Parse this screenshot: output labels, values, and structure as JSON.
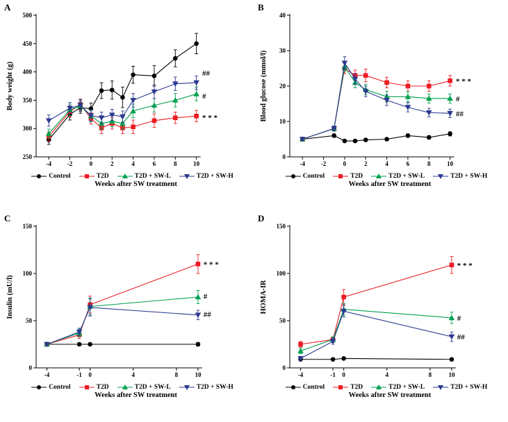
{
  "legend": {
    "items": [
      {
        "id": "control",
        "label": "Control",
        "marker": "circle",
        "color": "#000000"
      },
      {
        "id": "t2d",
        "label": "T2D",
        "marker": "square",
        "color": "#EC1C24"
      },
      {
        "id": "t2d-sw-l",
        "label": "T2D + SW-L",
        "marker": "triangle-up",
        "color": "#00A04E"
      },
      {
        "id": "t2d-sw-h",
        "label": "T2D + SW-H",
        "marker": "triangle-down",
        "color": "#2B3990"
      }
    ]
  },
  "chart_data": [
    {
      "type": "line",
      "letter": "A",
      "ylabel": "Body weight (g)",
      "xlabel": "Weeks after SW treatment",
      "ylim": [
        250,
        500
      ],
      "yticks": [
        250,
        300,
        350,
        400,
        450,
        500
      ],
      "xlim": [
        -5.2,
        12.2
      ],
      "xticks": [
        -4,
        -2,
        0,
        2,
        4,
        6,
        8,
        10
      ],
      "series": [
        {
          "name": "Control",
          "color": "#000000",
          "marker": "circle",
          "x": [
            -4,
            -2,
            -1,
            0,
            1,
            2,
            3,
            4,
            6,
            8,
            10
          ],
          "y": [
            280,
            325,
            337,
            335,
            367,
            368,
            355,
            395,
            393,
            424,
            450
          ],
          "err": [
            8,
            10,
            10,
            10,
            14,
            16,
            18,
            15,
            18,
            15,
            18
          ]
        },
        {
          "name": "T2D",
          "color": "#EC1C24",
          "marker": "square",
          "x": [
            -4,
            -2,
            -1,
            0,
            1,
            2,
            3,
            4,
            6,
            8,
            10
          ],
          "y": [
            286,
            330,
            342,
            318,
            301,
            309,
            301,
            303,
            314,
            319,
            322
          ],
          "err": [
            8,
            10,
            10,
            10,
            10,
            10,
            10,
            12,
            12,
            10,
            10
          ]
        },
        {
          "name": "T2D + SW-L",
          "color": "#00A04E",
          "marker": "triangle-up",
          "x": [
            -4,
            -2,
            -1,
            0,
            1,
            2,
            3,
            4,
            6,
            8,
            10
          ],
          "y": [
            291,
            333,
            340,
            322,
            309,
            313,
            309,
            331,
            341,
            350,
            361
          ],
          "err": [
            8,
            10,
            10,
            10,
            10,
            10,
            10,
            12,
            12,
            12,
            12
          ]
        },
        {
          "name": "T2D + SW-H",
          "color": "#2B3990",
          "marker": "triangle-down",
          "x": [
            -4,
            -2,
            -1,
            0,
            1,
            2,
            3,
            4,
            6,
            8,
            10
          ],
          "y": [
            314,
            336,
            341,
            323,
            319,
            324,
            321,
            350,
            365,
            379,
            381
          ],
          "err": [
            10,
            10,
            10,
            10,
            10,
            10,
            10,
            12,
            12,
            12,
            12
          ]
        }
      ],
      "annotations": [
        {
          "text": "##",
          "x": 10.55,
          "y": 398
        },
        {
          "text": "#",
          "x": 10.55,
          "y": 358
        },
        {
          "text": "* * *",
          "x": 10.55,
          "y": 320
        }
      ]
    },
    {
      "type": "line",
      "letter": "B",
      "ylabel": "Blood glucose (mmol/l)",
      "xlabel": "Weeks after SW treatment",
      "ylim": [
        0,
        40
      ],
      "yticks": [
        0,
        10,
        20,
        30,
        40
      ],
      "xlim": [
        -5.2,
        12.2
      ],
      "xticks": [
        -4,
        -2,
        0,
        2,
        4,
        6,
        8,
        10
      ],
      "series": [
        {
          "name": "Control",
          "color": "#000000",
          "marker": "circle",
          "x": [
            -4,
            -1,
            0,
            1,
            2,
            4,
            6,
            8,
            10
          ],
          "y": [
            5,
            6,
            4.5,
            4.5,
            4.8,
            5,
            6,
            5.5,
            6.5
          ],
          "err": [
            0.4,
            0.5,
            0.4,
            0.4,
            0.4,
            0.4,
            0.5,
            0.5,
            0.6
          ]
        },
        {
          "name": "T2D",
          "color": "#EC1C24",
          "marker": "square",
          "x": [
            -4,
            -1,
            0,
            1,
            2,
            4,
            6,
            8,
            10
          ],
          "y": [
            5,
            8,
            25,
            23,
            23,
            21,
            20,
            20,
            21.5
          ],
          "err": [
            0.4,
            0.7,
            1.5,
            1.5,
            1.8,
            1.5,
            1.5,
            1.5,
            1.5
          ]
        },
        {
          "name": "T2D + SW-L",
          "color": "#00A04E",
          "marker": "triangle-up",
          "x": [
            -4,
            -1,
            0,
            1,
            2,
            4,
            6,
            8,
            10
          ],
          "y": [
            5,
            8,
            25.5,
            21,
            19,
            17,
            17,
            16.5,
            16.5
          ],
          "err": [
            0.4,
            0.7,
            1.5,
            1.5,
            1.5,
            1.5,
            1.5,
            1.3,
            1.3
          ]
        },
        {
          "name": "T2D + SW-H",
          "color": "#2B3990",
          "marker": "triangle-down",
          "x": [
            -4,
            -1,
            0,
            1,
            2,
            4,
            6,
            8,
            10
          ],
          "y": [
            5,
            8,
            26.5,
            22,
            18.5,
            16,
            14,
            12.5,
            12.3
          ],
          "err": [
            0.4,
            0.7,
            1.8,
            1.5,
            1.5,
            1.5,
            1.3,
            1.2,
            1.2
          ]
        }
      ],
      "annotations": [
        {
          "text": "* * *",
          "x": 10.55,
          "y": 21.5
        },
        {
          "text": "#",
          "x": 10.55,
          "y": 16.5
        },
        {
          "text": "##",
          "x": 10.55,
          "y": 12.3
        }
      ]
    },
    {
      "type": "line",
      "letter": "C",
      "ylabel": "Insulin (mU/l)",
      "xlabel": "Weeks after SW treatment",
      "ylim": [
        0,
        150
      ],
      "yticks": [
        0,
        50,
        100,
        150
      ],
      "xlim": [
        -5,
        12
      ],
      "xticks": [
        -4,
        -1,
        0,
        4,
        8,
        10
      ],
      "series": [
        {
          "name": "Control",
          "color": "#000000",
          "marker": "circle",
          "x": [
            -4,
            -1,
            0,
            10
          ],
          "y": [
            25,
            25,
            25,
            25
          ],
          "err": [
            1.5,
            1.5,
            1.5,
            2
          ]
        },
        {
          "name": "T2D",
          "color": "#EC1C24",
          "marker": "square",
          "x": [
            -4,
            -1,
            0,
            10
          ],
          "y": [
            25,
            35,
            67,
            110
          ],
          "err": [
            1.5,
            4,
            9,
            10
          ]
        },
        {
          "name": "T2D + SW-L",
          "color": "#00A04E",
          "marker": "triangle-up",
          "x": [
            -4,
            -1,
            0,
            10
          ],
          "y": [
            25,
            37,
            65,
            75
          ],
          "err": [
            1.5,
            4,
            9,
            7
          ]
        },
        {
          "name": "T2D + SW-H",
          "color": "#2B3990",
          "marker": "triangle-down",
          "x": [
            -4,
            -1,
            0,
            10
          ],
          "y": [
            25,
            38,
            64,
            56
          ],
          "err": [
            1.5,
            4,
            9,
            5
          ]
        }
      ],
      "annotations": [
        {
          "text": "* * *",
          "x": 10.5,
          "y": 110
        },
        {
          "text": "#",
          "x": 10.5,
          "y": 76
        },
        {
          "text": "##",
          "x": 10.5,
          "y": 57
        }
      ]
    },
    {
      "type": "line",
      "letter": "D",
      "ylabel": "HOMA-IR",
      "xlabel": "Weeks after SW treatment",
      "ylim": [
        0,
        150
      ],
      "yticks": [
        0,
        50,
        100,
        150
      ],
      "xlim": [
        -5,
        12
      ],
      "xticks": [
        -4,
        -1,
        0,
        4,
        8,
        10
      ],
      "series": [
        {
          "name": "Control",
          "color": "#000000",
          "marker": "circle",
          "x": [
            -4,
            -1,
            0,
            10
          ],
          "y": [
            9,
            9,
            10,
            9
          ],
          "err": [
            1,
            1,
            1,
            1
          ]
        },
        {
          "name": "T2D",
          "color": "#EC1C24",
          "marker": "square",
          "x": [
            -4,
            -1,
            0,
            10
          ],
          "y": [
            25,
            30,
            75,
            109
          ],
          "err": [
            3,
            3,
            8,
            9
          ]
        },
        {
          "name": "T2D + SW-L",
          "color": "#00A04E",
          "marker": "triangle-up",
          "x": [
            -4,
            -1,
            0,
            10
          ],
          "y": [
            18,
            30,
            62,
            53
          ],
          "err": [
            3,
            3,
            6,
            6
          ]
        },
        {
          "name": "T2D + SW-H",
          "color": "#2B3990",
          "marker": "triangle-down",
          "x": [
            -4,
            -1,
            0,
            10
          ],
          "y": [
            10,
            28,
            60,
            33
          ],
          "err": [
            2,
            3,
            6,
            5
          ]
        }
      ],
      "annotations": [
        {
          "text": "* * *",
          "x": 10.5,
          "y": 109
        },
        {
          "text": "#",
          "x": 10.5,
          "y": 53
        },
        {
          "text": "##",
          "x": 10.5,
          "y": 33
        }
      ]
    }
  ]
}
